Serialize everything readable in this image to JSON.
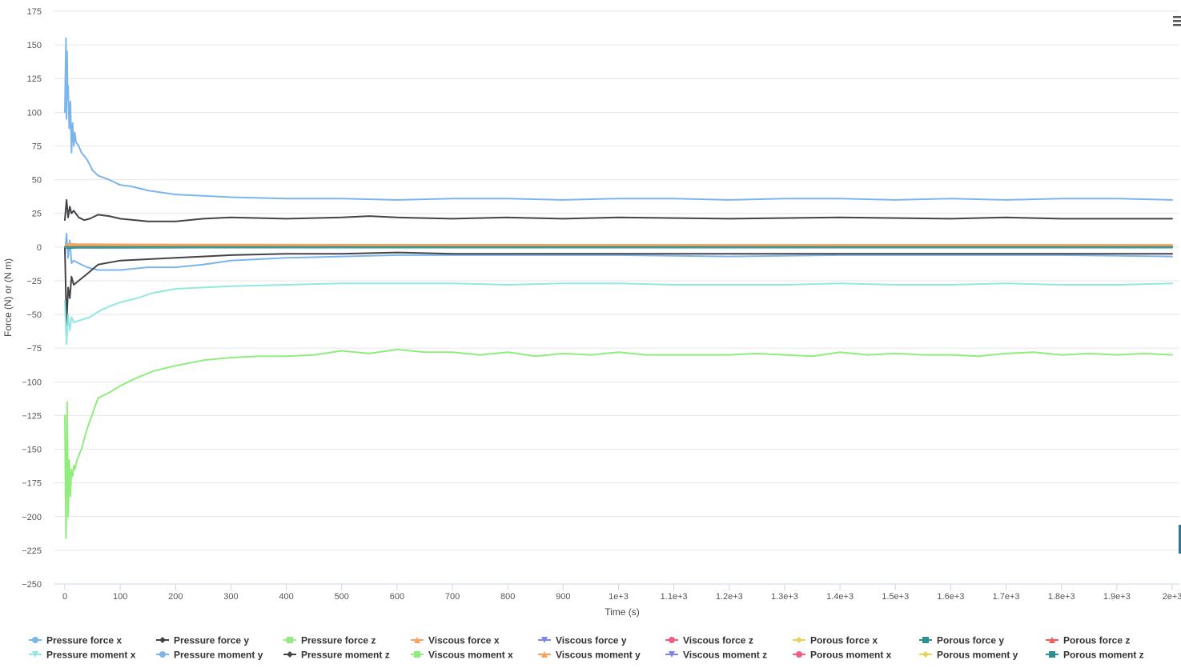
{
  "chart_data": {
    "type": "line",
    "title": "",
    "xlabel": "Time (s)",
    "ylabel": "Force (N) or (N m)",
    "xlim": [
      0,
      2000
    ],
    "ylim": [
      -250,
      175
    ],
    "x_ticks": [
      0,
      100,
      200,
      300,
      400,
      500,
      600,
      700,
      800,
      900,
      1000,
      1100,
      1200,
      1300,
      1400,
      1500,
      1600,
      1700,
      1800,
      1900,
      2000
    ],
    "x_tick_labels": [
      "0",
      "100",
      "200",
      "300",
      "400",
      "500",
      "600",
      "700",
      "800",
      "900",
      "1e+3",
      "1.1e+3",
      "1.2e+3",
      "1.3e+3",
      "1.4e+3",
      "1.5e+3",
      "1.6e+3",
      "1.7e+3",
      "1.8e+3",
      "1.9e+3",
      "2e+3"
    ],
    "y_ticks": [
      175,
      150,
      125,
      100,
      75,
      50,
      25,
      0,
      -25,
      -50,
      -75,
      -100,
      -125,
      -150,
      -175,
      -200,
      -225,
      -250
    ],
    "y_tick_labels": [
      "175",
      "150",
      "125",
      "100",
      "75",
      "50",
      "25",
      "0",
      "−25",
      "−50",
      "−75",
      "−100",
      "−125",
      "−150",
      "−175",
      "−200",
      "−225",
      "−250"
    ],
    "grid": true,
    "legend_position": "bottom",
    "series": [
      {
        "name": "Pressure force x",
        "color": "#7cb5ec",
        "marker": "circle",
        "x": [
          0,
          3,
          6,
          9,
          12,
          16,
          25,
          40,
          60,
          100,
          150,
          200,
          250,
          300,
          400,
          500,
          600,
          700,
          800,
          900,
          1000,
          1200,
          1400,
          1600,
          1800,
          2000
        ],
        "y": [
          -5,
          10,
          -8,
          5,
          -12,
          -10,
          -12,
          -15,
          -17,
          -17,
          -15,
          -15,
          -13,
          -10,
          -8,
          -7,
          -6,
          -6,
          -6,
          -6,
          -6,
          -7,
          -6,
          -6,
          -6,
          -7
        ]
      },
      {
        "name": "Pressure force y",
        "color": "#434348",
        "marker": "diamond",
        "x": [
          0,
          3,
          6,
          9,
          12,
          16,
          25,
          40,
          60,
          100,
          150,
          200,
          250,
          300,
          400,
          500,
          600,
          700,
          800,
          900,
          1000,
          1200,
          1400,
          1600,
          1800,
          2000
        ],
        "y": [
          0,
          -58,
          -30,
          -38,
          -22,
          -28,
          -25,
          -20,
          -13,
          -10,
          -9,
          -8,
          -7,
          -6,
          -5,
          -5,
          -4,
          -5,
          -5,
          -5,
          -5,
          -5,
          -5,
          -5,
          -5,
          -5
        ]
      },
      {
        "name": "Pressure force z",
        "color": "#90ed7d",
        "marker": "square",
        "x": [
          0,
          2,
          4,
          6,
          8,
          10,
          12,
          14,
          16,
          18,
          22,
          30,
          40,
          60,
          80,
          100,
          130,
          160,
          200,
          250,
          300,
          350,
          400,
          450,
          500,
          550,
          600,
          650,
          700,
          750,
          800,
          850,
          900,
          950,
          1000,
          1050,
          1100,
          1150,
          1200,
          1250,
          1300,
          1350,
          1400,
          1450,
          1500,
          1550,
          1600,
          1650,
          1700,
          1750,
          1800,
          1850,
          1900,
          1950,
          2000
        ],
        "y": [
          -125,
          -216,
          -115,
          -200,
          -158,
          -185,
          -165,
          -170,
          -162,
          -165,
          -158,
          -150,
          -135,
          -112,
          -108,
          -103,
          -97,
          -92,
          -88,
          -84,
          -82,
          -81,
          -81,
          -80,
          -77,
          -79,
          -76,
          -78,
          -78,
          -80,
          -78,
          -81,
          -79,
          -80,
          -78,
          -80,
          -80,
          -80,
          -80,
          -79,
          -80,
          -81,
          -78,
          -80,
          -79,
          -80,
          -80,
          -81,
          -79,
          -78,
          -80,
          -79,
          -80,
          -79,
          -80
        ]
      },
      {
        "name": "Viscous force x",
        "color": "#f7a35c",
        "marker": "triangle",
        "x": [
          0,
          5,
          20,
          100,
          300,
          600,
          1000,
          1500,
          2000
        ],
        "y": [
          0,
          2.5,
          2.2,
          2.0,
          1.8,
          1.7,
          1.6,
          1.6,
          1.6
        ]
      },
      {
        "name": "Viscous force y",
        "color": "#8085e9",
        "marker": "triangle-down",
        "x": [
          0,
          2000
        ],
        "y": [
          0,
          0
        ]
      },
      {
        "name": "Viscous force z",
        "color": "#f15c80",
        "marker": "circle",
        "x": [
          0,
          2000
        ],
        "y": [
          0,
          0
        ]
      },
      {
        "name": "Porous force x",
        "color": "#e4d354",
        "marker": "diamond",
        "x": [
          0,
          2000
        ],
        "y": [
          0,
          0
        ]
      },
      {
        "name": "Porous force y",
        "color": "#2b908f",
        "marker": "square",
        "x": [
          0,
          5,
          20,
          100,
          300,
          2000
        ],
        "y": [
          0,
          -0.8,
          -0.6,
          -0.5,
          -0.4,
          -0.4
        ]
      },
      {
        "name": "Porous force z",
        "color": "#f45b5b",
        "marker": "triangle",
        "x": [
          0,
          2000
        ],
        "y": [
          0,
          0
        ]
      },
      {
        "name": "Pressure moment x",
        "color": "#91e8e1",
        "marker": "triangle-down",
        "x": [
          0,
          3,
          6,
          9,
          12,
          16,
          22,
          30,
          45,
          60,
          80,
          100,
          130,
          160,
          200,
          250,
          300,
          400,
          500,
          600,
          700,
          800,
          900,
          1000,
          1100,
          1200,
          1300,
          1400,
          1500,
          1600,
          1700,
          1800,
          1900,
          2000
        ],
        "y": [
          -40,
          -72,
          -50,
          -62,
          -52,
          -56,
          -55,
          -54,
          -52,
          -48,
          -44,
          -41,
          -38,
          -34,
          -31,
          -30,
          -29,
          -28,
          -27,
          -27,
          -27,
          -28,
          -27,
          -27,
          -28,
          -28,
          -28,
          -27,
          -28,
          -28,
          -27,
          -28,
          -28,
          -27
        ]
      },
      {
        "name": "Pressure moment y",
        "color": "#7cb5ec",
        "marker": "circle",
        "x": [
          0,
          2,
          3,
          4,
          5,
          6,
          8,
          10,
          12,
          14,
          16,
          18,
          20,
          25,
          30,
          40,
          50,
          60,
          80,
          100,
          120,
          150,
          200,
          250,
          300,
          400,
          500,
          600,
          700,
          800,
          900,
          1000,
          1100,
          1200,
          1300,
          1400,
          1500,
          1600,
          1700,
          1800,
          1900,
          2000
        ],
        "y": [
          100,
          155,
          95,
          145,
          110,
          120,
          88,
          108,
          70,
          92,
          75,
          85,
          78,
          75,
          70,
          65,
          57,
          53,
          50,
          46,
          45,
          42,
          39,
          38,
          37,
          36,
          36,
          35,
          36,
          36,
          35,
          36,
          36,
          35,
          36,
          36,
          35,
          36,
          35,
          36,
          36,
          35
        ]
      },
      {
        "name": "Pressure moment z",
        "color": "#434348",
        "marker": "diamond",
        "x": [
          0,
          3,
          6,
          9,
          12,
          16,
          25,
          35,
          45,
          60,
          80,
          100,
          150,
          200,
          250,
          300,
          400,
          500,
          550,
          600,
          700,
          800,
          900,
          1000,
          1200,
          1400,
          1600,
          1700,
          1800,
          2000
        ],
        "y": [
          20,
          35,
          22,
          30,
          25,
          27,
          22,
          20,
          21,
          24,
          23,
          21,
          19,
          19,
          21,
          22,
          21,
          22,
          23,
          22,
          21,
          22,
          21,
          22,
          21,
          22,
          21,
          22,
          21,
          21
        ]
      },
      {
        "name": "Viscous moment x",
        "color": "#90ed7d",
        "marker": "square",
        "x": [
          0,
          2000
        ],
        "y": [
          0,
          0
        ]
      },
      {
        "name": "Viscous moment y",
        "color": "#f7a35c",
        "marker": "triangle",
        "x": [
          0,
          5,
          100,
          2000
        ],
        "y": [
          0,
          1.2,
          1.0,
          1.0
        ]
      },
      {
        "name": "Viscous moment z",
        "color": "#8085e9",
        "marker": "triangle-down",
        "x": [
          0,
          2000
        ],
        "y": [
          0,
          0
        ]
      },
      {
        "name": "Porous moment x",
        "color": "#f15c80",
        "marker": "circle",
        "x": [
          0,
          2000
        ],
        "y": [
          0,
          0
        ]
      },
      {
        "name": "Porous moment y",
        "color": "#e4d354",
        "marker": "diamond",
        "x": [
          0,
          2000
        ],
        "y": [
          0,
          0
        ]
      },
      {
        "name": "Porous moment z",
        "color": "#2b908f",
        "marker": "square",
        "x": [
          0,
          2000
        ],
        "y": [
          0,
          0
        ]
      }
    ]
  }
}
